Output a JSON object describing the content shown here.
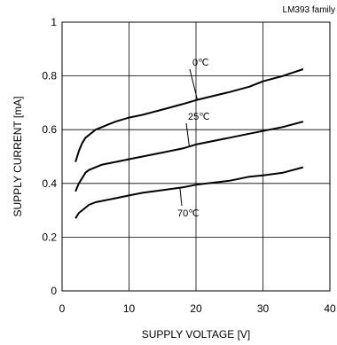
{
  "chart_data": {
    "type": "line",
    "title": "LM393 family",
    "xlabel": "SUPPLY VOLTAGE [V]",
    "ylabel": "SUPPLY CURRENT [mA]",
    "xlim": [
      0,
      40
    ],
    "ylim": [
      0,
      1.0
    ],
    "xticks": [
      0,
      10,
      20,
      30,
      40
    ],
    "yticks": [
      0,
      0.2,
      0.4,
      0.6,
      0.8,
      1
    ],
    "xtick_labels": [
      "0",
      "10",
      "20",
      "30",
      "40"
    ],
    "ytick_labels": [
      "0",
      "0.2",
      "0.4",
      "0.6",
      "0.8",
      "1"
    ],
    "grid": true,
    "series": [
      {
        "name": "0℃",
        "x": [
          2.0,
          2.5,
          3.0,
          3.5,
          4.0,
          5.0,
          6.0,
          7.0,
          8.0,
          10.0,
          12.0,
          15.0,
          18.0,
          20.0,
          25.0,
          28.0,
          30.0,
          33.0,
          36.0
        ],
        "y": [
          0.48,
          0.52,
          0.55,
          0.57,
          0.58,
          0.6,
          0.61,
          0.62,
          0.63,
          0.645,
          0.655,
          0.675,
          0.695,
          0.71,
          0.74,
          0.76,
          0.78,
          0.8,
          0.825
        ]
      },
      {
        "name": "25℃",
        "x": [
          2.0,
          2.5,
          3.0,
          3.5,
          4.0,
          5.0,
          6.0,
          8.0,
          10.0,
          12.0,
          15.0,
          18.0,
          20.0,
          25.0,
          28.0,
          30.0,
          33.0,
          36.0
        ],
        "y": [
          0.37,
          0.4,
          0.42,
          0.44,
          0.45,
          0.46,
          0.47,
          0.48,
          0.49,
          0.5,
          0.515,
          0.53,
          0.545,
          0.57,
          0.585,
          0.595,
          0.61,
          0.63
        ]
      },
      {
        "name": "70℃",
        "x": [
          2.0,
          2.5,
          3.0,
          3.5,
          4.0,
          5.0,
          6.0,
          8.0,
          10.0,
          12.0,
          15.0,
          18.0,
          20.0,
          25.0,
          28.0,
          30.0,
          33.0,
          36.0
        ],
        "y": [
          0.27,
          0.29,
          0.3,
          0.31,
          0.32,
          0.33,
          0.335,
          0.345,
          0.355,
          0.365,
          0.375,
          0.385,
          0.395,
          0.41,
          0.425,
          0.43,
          0.44,
          0.46
        ]
      }
    ],
    "annotations": [
      {
        "text": "0℃",
        "series": 0
      },
      {
        "text": "25℃",
        "series": 1
      },
      {
        "text": "70℃",
        "series": 2
      }
    ]
  }
}
